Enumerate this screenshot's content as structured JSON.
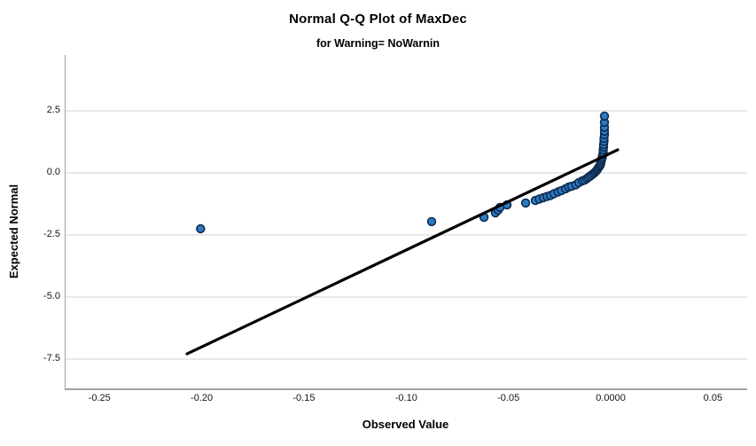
{
  "chart": {
    "title": "Normal Q-Q Plot of MaxDec",
    "subtitle": "for Warning= NoWarnin",
    "x_axis": {
      "label": "Observed Value",
      "tick_labels": [
        "-0.25",
        "-0.20",
        "-0.15",
        "-0.10",
        "-0.05",
        "0.0000",
        "0.05"
      ],
      "tick_values": [
        -0.25,
        -0.2,
        -0.15,
        -0.1,
        -0.05,
        0.0,
        0.05
      ]
    },
    "y_axis": {
      "label": "Expected Normal",
      "tick_labels": [
        "2.5",
        "0.0",
        "-2.5",
        "-5.0",
        "-7.5"
      ],
      "tick_values": [
        2.5,
        0.0,
        -2.5,
        -5.0,
        -7.5
      ]
    },
    "colors": {
      "point_fill": "#2b7bc2",
      "point_stroke": "#0d2b4f",
      "reference_line": "#000000",
      "gridline": "#d2d2d2",
      "axis_line": "#a0a0a0",
      "text": "#000000"
    }
  },
  "chart_data": {
    "type": "scatter",
    "title": "Normal Q-Q Plot of MaxDec",
    "subtitle": "for Warning= NoWarnin",
    "xlabel": "Observed Value",
    "ylabel": "Expected Normal",
    "xlim": [
      -0.267,
      0.0663
    ],
    "ylim": [
      -8.68,
      4.75
    ],
    "grid": "horizontal-only",
    "legend": "none",
    "reference_line": {
      "x1": -0.2076,
      "y1": -7.29,
      "x2": 0.003,
      "y2": 0.93
    },
    "points": [
      [
        -0.201,
        -2.25
      ],
      [
        -0.088,
        -1.96
      ],
      [
        -0.0624,
        -1.79
      ],
      [
        -0.0568,
        -1.61
      ],
      [
        -0.0555,
        -1.5
      ],
      [
        -0.0546,
        -1.39
      ],
      [
        -0.0511,
        -1.29
      ],
      [
        -0.042,
        -1.21
      ],
      [
        -0.0373,
        -1.11
      ],
      [
        -0.0353,
        -1.05
      ],
      [
        -0.0334,
        -1.0
      ],
      [
        -0.0316,
        -0.95
      ],
      [
        -0.0299,
        -0.91
      ],
      [
        -0.0282,
        -0.84
      ],
      [
        -0.0262,
        -0.77
      ],
      [
        -0.0245,
        -0.71
      ],
      [
        -0.0225,
        -0.64
      ],
      [
        -0.021,
        -0.57
      ],
      [
        -0.0195,
        -0.54
      ],
      [
        -0.0175,
        -0.48
      ],
      [
        -0.016,
        -0.39
      ],
      [
        -0.0143,
        -0.32
      ],
      [
        -0.0132,
        -0.29
      ],
      [
        -0.0121,
        -0.23
      ],
      [
        -0.0113,
        -0.18
      ],
      [
        -0.0104,
        -0.13
      ],
      [
        -0.0095,
        -0.07
      ],
      [
        -0.0087,
        -0.02
      ],
      [
        -0.008,
        0.04
      ],
      [
        -0.0074,
        0.09
      ],
      [
        -0.0069,
        0.14
      ],
      [
        -0.0065,
        0.2
      ],
      [
        -0.0061,
        0.25
      ],
      [
        -0.0056,
        0.3
      ],
      [
        -0.0054,
        0.36
      ],
      [
        -0.0052,
        0.43
      ],
      [
        -0.005,
        0.5
      ],
      [
        -0.0048,
        0.57
      ],
      [
        -0.0045,
        0.64
      ],
      [
        -0.0043,
        0.73
      ],
      [
        -0.0041,
        0.82
      ],
      [
        -0.0041,
        0.93
      ],
      [
        -0.0039,
        1.04
      ],
      [
        -0.0039,
        1.14
      ],
      [
        -0.0037,
        1.27
      ],
      [
        -0.0037,
        1.39
      ],
      [
        -0.0035,
        1.54
      ],
      [
        -0.0035,
        1.68
      ],
      [
        -0.0035,
        1.84
      ],
      [
        -0.0035,
        2.04
      ],
      [
        -0.0035,
        2.29
      ]
    ]
  }
}
